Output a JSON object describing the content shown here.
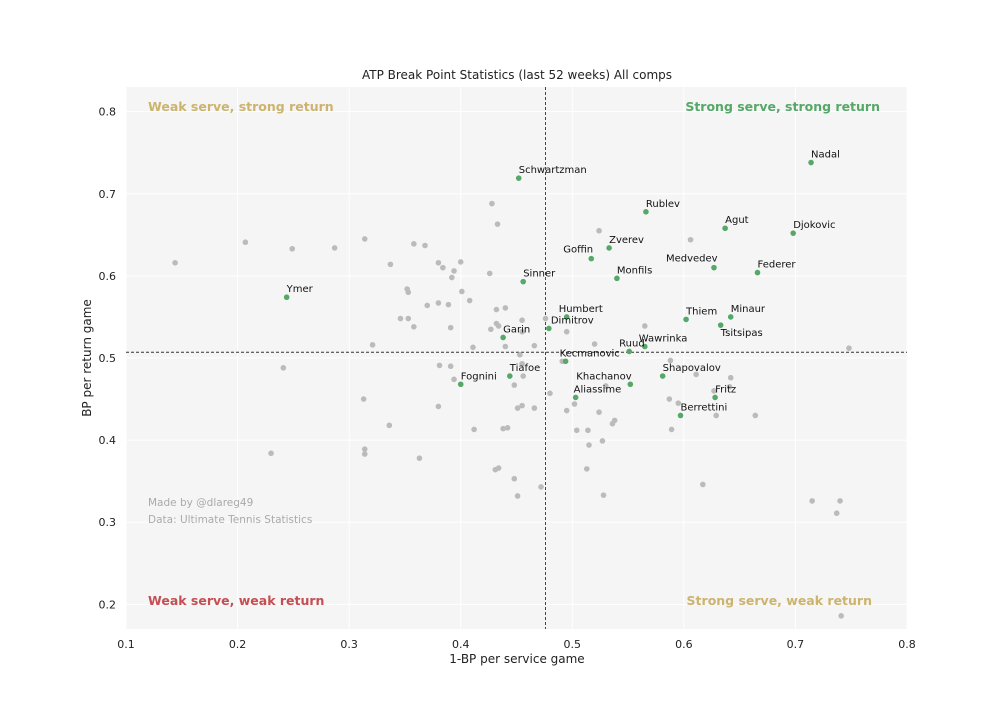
{
  "chart_data": {
    "type": "scatter",
    "title": "ATP Break Point Statistics (last 52 weeks) All comps",
    "xlabel": "1-BP per service game",
    "ylabel": "BP per return game",
    "xlim": [
      0.1,
      0.8
    ],
    "ylim": [
      0.17,
      0.83
    ],
    "xticks": [
      "0.1",
      "0.2",
      "0.3",
      "0.4",
      "0.5",
      "0.6",
      "0.7",
      "0.8"
    ],
    "yticks": [
      "0.2",
      "0.3",
      "0.4",
      "0.5",
      "0.6",
      "0.7",
      "0.8"
    ],
    "grid": true,
    "reference_lines": {
      "x": 0.476,
      "y": 0.507
    },
    "quadrant_labels": [
      {
        "text": "Weak serve, strong return",
        "corner": "top-left",
        "color": "#ccb46e"
      },
      {
        "text": "Strong serve, strong return",
        "corner": "top-right",
        "color": "#55a868"
      },
      {
        "text": "Weak serve, weak return",
        "corner": "bottom-left",
        "color": "#c44e52"
      },
      {
        "text": "Strong serve, weak return",
        "corner": "bottom-right",
        "color": "#ccb46e"
      }
    ],
    "credits": [
      "Made by @dlareg49",
      "Data: Ultimate Tennis Statistics"
    ],
    "colors": {
      "highlight": "#55a868",
      "other": "#bbbbbb",
      "background": "#f5f5f5"
    },
    "highlighted": [
      {
        "name": "Nadal",
        "x": 0.714,
        "y": 0.738
      },
      {
        "name": "Schwartzman",
        "x": 0.452,
        "y": 0.719
      },
      {
        "name": "Rublev",
        "x": 0.566,
        "y": 0.678
      },
      {
        "name": "Agut",
        "x": 0.637,
        "y": 0.658
      },
      {
        "name": "Djokovic",
        "x": 0.698,
        "y": 0.652
      },
      {
        "name": "Zverev",
        "x": 0.533,
        "y": 0.634
      },
      {
        "name": "Goffin",
        "x": 0.517,
        "y": 0.621
      },
      {
        "name": "Medvedev",
        "x": 0.627,
        "y": 0.61
      },
      {
        "name": "Federer",
        "x": 0.666,
        "y": 0.604
      },
      {
        "name": "Monfils",
        "x": 0.54,
        "y": 0.597
      },
      {
        "name": "Sinner",
        "x": 0.456,
        "y": 0.593
      },
      {
        "name": "Ymer",
        "x": 0.244,
        "y": 0.574
      },
      {
        "name": "Humbert",
        "x": 0.495,
        "y": 0.55
      },
      {
        "name": "Minaur",
        "x": 0.642,
        "y": 0.55
      },
      {
        "name": "Thiem",
        "x": 0.602,
        "y": 0.547
      },
      {
        "name": "Tsitsipas",
        "x": 0.633,
        "y": 0.54
      },
      {
        "name": "Dimitrov",
        "x": 0.479,
        "y": 0.536
      },
      {
        "name": "Garin",
        "x": 0.438,
        "y": 0.525
      },
      {
        "name": "Ruud",
        "x": 0.551,
        "y": 0.508
      },
      {
        "name": "Wawrinka",
        "x": 0.565,
        "y": 0.514
      },
      {
        "name": "Tiafoe",
        "x": 0.444,
        "y": 0.478
      },
      {
        "name": "Fognini",
        "x": 0.4,
        "y": 0.468
      },
      {
        "name": "Khachanov",
        "x": 0.552,
        "y": 0.468
      },
      {
        "name": "Shapovalov",
        "x": 0.581,
        "y": 0.478
      },
      {
        "name": "Aliassime",
        "x": 0.503,
        "y": 0.452
      },
      {
        "name": "Fritz",
        "x": 0.628,
        "y": 0.452
      },
      {
        "name": "Berrettini",
        "x": 0.597,
        "y": 0.43
      },
      {
        "name": "Kecmanovic",
        "x": 0.494,
        "y": 0.496
      }
    ],
    "others": [
      [
        0.144,
        0.616
      ],
      [
        0.207,
        0.641
      ],
      [
        0.249,
        0.633
      ],
      [
        0.287,
        0.634
      ],
      [
        0.314,
        0.645
      ],
      [
        0.337,
        0.614
      ],
      [
        0.358,
        0.639
      ],
      [
        0.368,
        0.637
      ],
      [
        0.38,
        0.616
      ],
      [
        0.384,
        0.61
      ],
      [
        0.394,
        0.606
      ],
      [
        0.4,
        0.617
      ],
      [
        0.392,
        0.598
      ],
      [
        0.426,
        0.603
      ],
      [
        0.428,
        0.688
      ],
      [
        0.433,
        0.663
      ],
      [
        0.352,
        0.584
      ],
      [
        0.353,
        0.58
      ],
      [
        0.401,
        0.581
      ],
      [
        0.408,
        0.57
      ],
      [
        0.38,
        0.567
      ],
      [
        0.389,
        0.565
      ],
      [
        0.37,
        0.564
      ],
      [
        0.346,
        0.548
      ],
      [
        0.353,
        0.548
      ],
      [
        0.358,
        0.538
      ],
      [
        0.391,
        0.537
      ],
      [
        0.432,
        0.559
      ],
      [
        0.44,
        0.561
      ],
      [
        0.455,
        0.546
      ],
      [
        0.432,
        0.542
      ],
      [
        0.427,
        0.535
      ],
      [
        0.434,
        0.539
      ],
      [
        0.476,
        0.548
      ],
      [
        0.495,
        0.532
      ],
      [
        0.455,
        0.532
      ],
      [
        0.524,
        0.655
      ],
      [
        0.606,
        0.644
      ],
      [
        0.565,
        0.539
      ],
      [
        0.321,
        0.516
      ],
      [
        0.411,
        0.513
      ],
      [
        0.44,
        0.514
      ],
      [
        0.466,
        0.515
      ],
      [
        0.52,
        0.517
      ],
      [
        0.453,
        0.504
      ],
      [
        0.491,
        0.496
      ],
      [
        0.455,
        0.493
      ],
      [
        0.241,
        0.488
      ],
      [
        0.381,
        0.491
      ],
      [
        0.391,
        0.49
      ],
      [
        0.394,
        0.474
      ],
      [
        0.448,
        0.467
      ],
      [
        0.456,
        0.478
      ],
      [
        0.53,
        0.466
      ],
      [
        0.588,
        0.497
      ],
      [
        0.611,
        0.48
      ],
      [
        0.642,
        0.476
      ],
      [
        0.641,
        0.465
      ],
      [
        0.748,
        0.512
      ],
      [
        0.313,
        0.45
      ],
      [
        0.48,
        0.457
      ],
      [
        0.502,
        0.444
      ],
      [
        0.495,
        0.436
      ],
      [
        0.524,
        0.434
      ],
      [
        0.451,
        0.439
      ],
      [
        0.455,
        0.442
      ],
      [
        0.466,
        0.439
      ],
      [
        0.38,
        0.441
      ],
      [
        0.587,
        0.45
      ],
      [
        0.595,
        0.445
      ],
      [
        0.627,
        0.46
      ],
      [
        0.664,
        0.43
      ],
      [
        0.629,
        0.43
      ],
      [
        0.536,
        0.42
      ],
      [
        0.538,
        0.424
      ],
      [
        0.589,
        0.413
      ],
      [
        0.336,
        0.418
      ],
      [
        0.412,
        0.413
      ],
      [
        0.438,
        0.414
      ],
      [
        0.442,
        0.415
      ],
      [
        0.504,
        0.412
      ],
      [
        0.514,
        0.412
      ],
      [
        0.515,
        0.394
      ],
      [
        0.527,
        0.399
      ],
      [
        0.23,
        0.384
      ],
      [
        0.314,
        0.389
      ],
      [
        0.314,
        0.383
      ],
      [
        0.363,
        0.378
      ],
      [
        0.431,
        0.364
      ],
      [
        0.434,
        0.366
      ],
      [
        0.513,
        0.365
      ],
      [
        0.448,
        0.353
      ],
      [
        0.472,
        0.343
      ],
      [
        0.451,
        0.332
      ],
      [
        0.528,
        0.333
      ],
      [
        0.617,
        0.346
      ],
      [
        0.715,
        0.326
      ],
      [
        0.74,
        0.326
      ],
      [
        0.737,
        0.311
      ],
      [
        0.741,
        0.186
      ]
    ]
  }
}
